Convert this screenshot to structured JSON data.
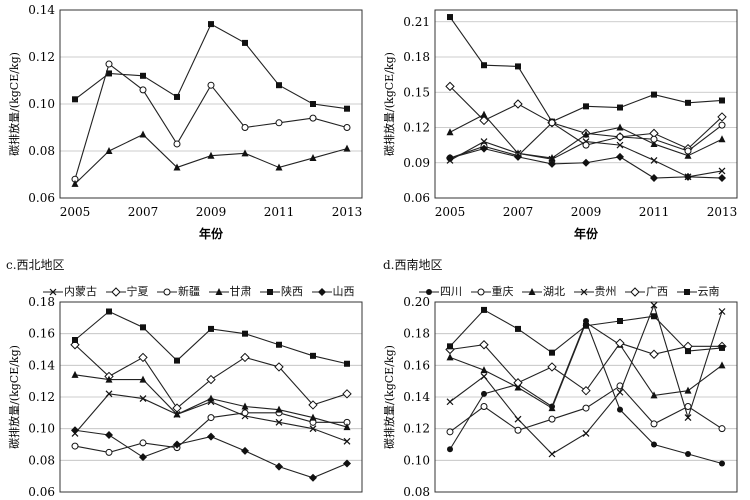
{
  "chart_data": [
    {
      "type": "line",
      "title": "",
      "xlabel": "年份",
      "ylabel": "碳排放量/(kgCE/kg)",
      "x": [
        2005,
        2006,
        2007,
        2008,
        2009,
        2010,
        2011,
        2012,
        2013
      ],
      "xticks": [
        "2005",
        "2007",
        "2009",
        "2011",
        "2013"
      ],
      "ylim": [
        0.06,
        0.14
      ],
      "yticks": [
        "0.06",
        "0.08",
        "0.10",
        "0.12",
        "0.14"
      ],
      "grid": true,
      "series": [
        {
          "marker": "square",
          "values": [
            0.102,
            0.113,
            0.112,
            0.103,
            0.134,
            0.126,
            0.108,
            0.1,
            0.098
          ]
        },
        {
          "marker": "circle-open",
          "values": [
            0.068,
            0.117,
            0.106,
            0.083,
            0.108,
            0.09,
            0.092,
            0.094,
            0.09
          ]
        },
        {
          "marker": "triangle",
          "values": [
            0.066,
            0.08,
            0.087,
            0.073,
            0.078,
            0.079,
            0.073,
            0.077,
            0.081
          ]
        }
      ]
    },
    {
      "type": "line",
      "title": "",
      "xlabel": "年份",
      "ylabel": "碳排放量/(kgCE/kg)",
      "x": [
        2005,
        2006,
        2007,
        2008,
        2009,
        2010,
        2011,
        2012,
        2013
      ],
      "xticks": [
        "2005",
        "2007",
        "2009",
        "2011",
        "2013"
      ],
      "ylim": [
        0.06,
        0.22
      ],
      "yticks": [
        "0.06",
        "0.09",
        "0.12",
        "0.15",
        "0.18",
        "0.21"
      ],
      "grid": true,
      "series": [
        {
          "marker": "square",
          "values": [
            0.214,
            0.173,
            0.172,
            0.125,
            0.138,
            0.137,
            0.148,
            0.141,
            0.143
          ]
        },
        {
          "marker": "diamond-open",
          "values": [
            0.155,
            0.126,
            0.14,
            0.124,
            0.115,
            0.112,
            0.115,
            0.102,
            0.129
          ]
        },
        {
          "marker": "triangle",
          "values": [
            0.116,
            0.131,
            0.098,
            0.094,
            0.114,
            0.12,
            0.106,
            0.096,
            0.11
          ]
        },
        {
          "marker": "cross",
          "values": [
            0.092,
            0.108,
            0.098,
            0.093,
            0.108,
            0.105,
            0.092,
            0.078,
            0.083
          ]
        },
        {
          "marker": "circle-open",
          "values": [
            0.094,
            0.104,
            0.096,
            0.124,
            0.105,
            0.112,
            0.11,
            0.1,
            0.122
          ]
        },
        {
          "marker": "diamond",
          "values": [
            0.094,
            0.102,
            0.095,
            0.089,
            0.09,
            0.095,
            0.077,
            0.078,
            0.077
          ]
        }
      ]
    },
    {
      "type": "line",
      "title": "c.西北地区",
      "xlabel": "",
      "ylabel": "碳排放量/(kgCE/kg)",
      "x": [
        2005,
        2006,
        2007,
        2008,
        2009,
        2010,
        2011,
        2012,
        2013
      ],
      "ylim": [
        0.06,
        0.18
      ],
      "yticks": [
        "0.06",
        "0.08",
        "0.10",
        "0.12",
        "0.14",
        "0.16",
        "0.18"
      ],
      "grid": true,
      "series": [
        {
          "name": "内蒙古",
          "marker": "cross",
          "values": [
            0.097,
            0.122,
            0.119,
            0.109,
            0.117,
            0.108,
            0.104,
            0.1,
            0.092
          ]
        },
        {
          "name": "宁夏",
          "marker": "diamond-open",
          "values": [
            0.153,
            0.133,
            0.145,
            0.113,
            0.131,
            0.145,
            0.139,
            0.115,
            0.122
          ]
        },
        {
          "name": "新疆",
          "marker": "circle-open",
          "values": [
            0.089,
            0.085,
            0.091,
            0.088,
            0.107,
            0.11,
            0.11,
            0.104,
            0.104
          ]
        },
        {
          "name": "甘肃",
          "marker": "triangle",
          "values": [
            0.134,
            0.131,
            0.131,
            0.109,
            0.119,
            0.114,
            0.112,
            0.107,
            0.101
          ]
        },
        {
          "name": "陕西",
          "marker": "square",
          "values": [
            0.156,
            0.174,
            0.164,
            0.143,
            0.163,
            0.16,
            0.153,
            0.146,
            0.141
          ]
        },
        {
          "name": "山西",
          "marker": "diamond",
          "values": [
            0.099,
            0.096,
            0.082,
            0.09,
            0.095,
            0.086,
            0.076,
            0.069,
            0.078
          ]
        }
      ]
    },
    {
      "type": "line",
      "title": "d.西南地区",
      "xlabel": "",
      "ylabel": "碳排放量/(kgCE/kg)",
      "x": [
        2005,
        2006,
        2007,
        2008,
        2009,
        2010,
        2011,
        2012,
        2013
      ],
      "ylim": [
        0.08,
        0.2
      ],
      "yticks": [
        "0.08",
        "0.10",
        "0.12",
        "0.14",
        "0.16",
        "0.18",
        "0.20"
      ],
      "grid": true,
      "series": [
        {
          "name": "四川",
          "marker": "circle",
          "values": [
            0.107,
            0.142,
            0.148,
            0.134,
            0.188,
            0.132,
            0.11,
            0.104,
            0.098
          ]
        },
        {
          "name": "重庆",
          "marker": "circle-open",
          "values": [
            0.118,
            0.134,
            0.119,
            0.126,
            0.133,
            0.147,
            0.123,
            0.134,
            0.12
          ]
        },
        {
          "name": "湖北",
          "marker": "triangle",
          "values": [
            0.165,
            0.157,
            0.146,
            0.133,
            0.187,
            0.173,
            0.141,
            0.144,
            0.16
          ]
        },
        {
          "name": "贵州",
          "marker": "cross",
          "values": [
            0.137,
            0.153,
            0.126,
            0.104,
            0.117,
            0.143,
            0.198,
            0.127,
            0.194
          ]
        },
        {
          "name": "广西",
          "marker": "diamond-open",
          "values": [
            0.17,
            0.173,
            0.149,
            0.159,
            0.144,
            0.174,
            0.167,
            0.172,
            0.172
          ]
        },
        {
          "name": "云南",
          "marker": "square",
          "values": [
            0.172,
            0.195,
            0.183,
            0.168,
            0.185,
            0.188,
            0.191,
            0.169,
            0.171
          ]
        }
      ]
    }
  ]
}
